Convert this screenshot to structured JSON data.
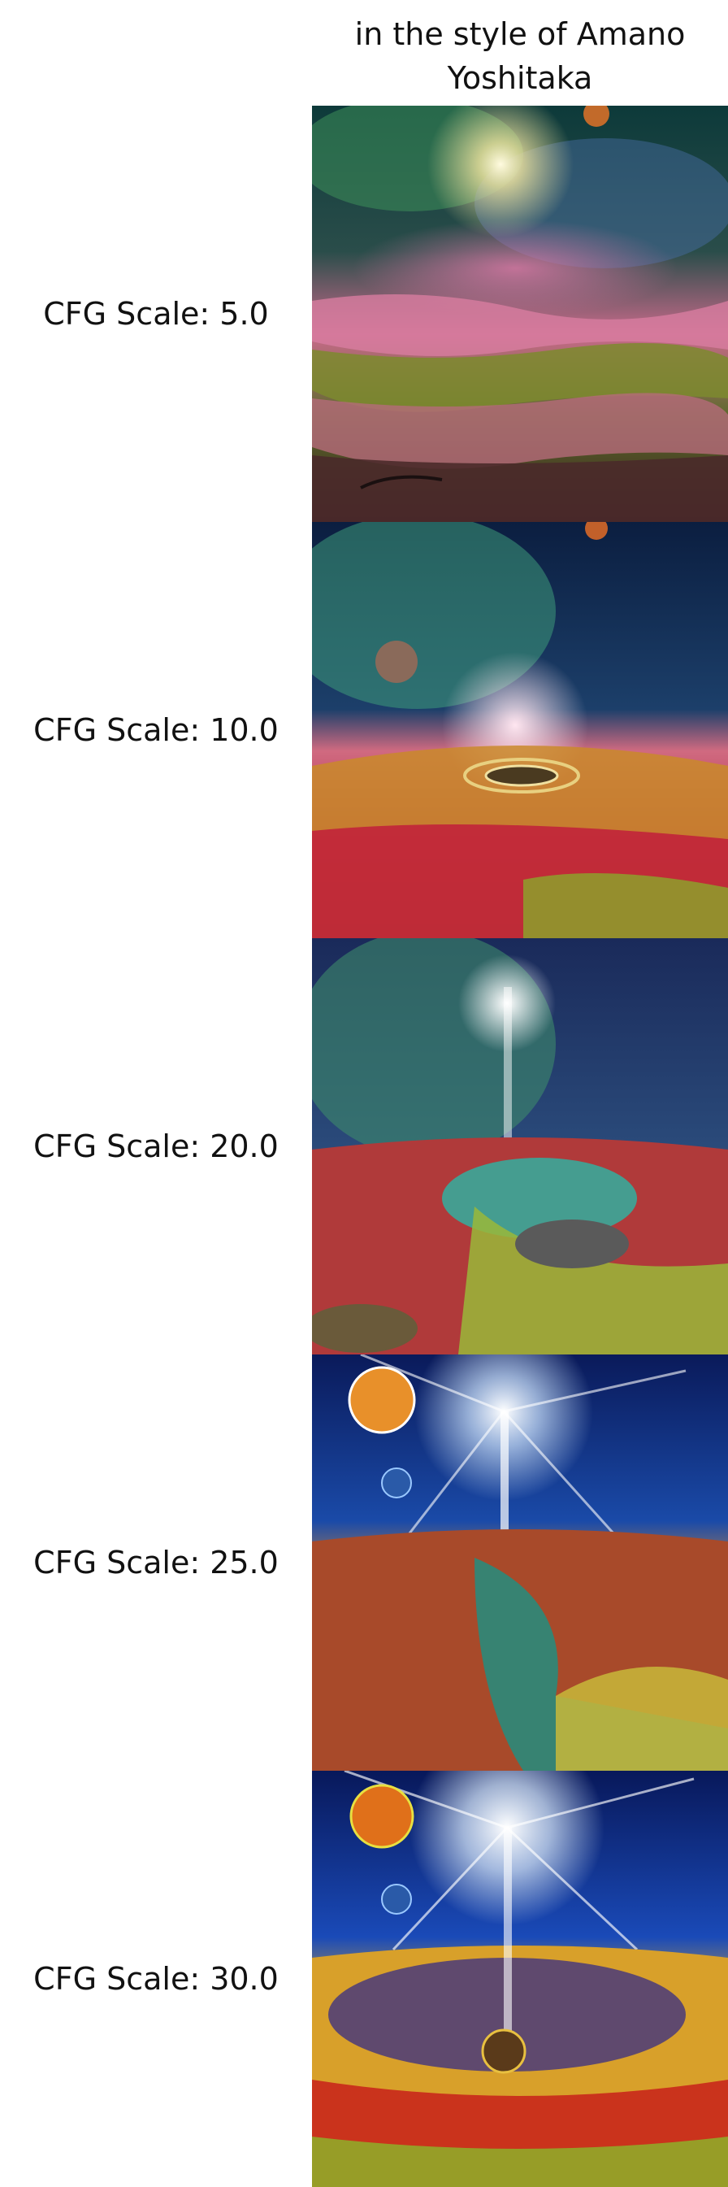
{
  "header": {
    "column_title": "in the style of Amano\nYoshitaka"
  },
  "rows": [
    {
      "label": "CFG Scale: 5.0"
    },
    {
      "label": "CFG Scale: 10.0"
    },
    {
      "label": "CFG Scale: 20.0"
    },
    {
      "label": "CFG Scale: 25.0"
    },
    {
      "label": "CFG Scale: 30.0"
    }
  ],
  "colors": {
    "background": "#ffffff",
    "text": "#111111"
  }
}
